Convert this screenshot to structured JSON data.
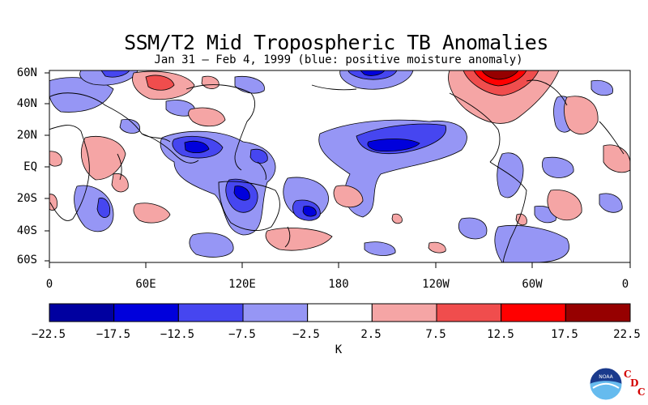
{
  "title": "SSM/T2 Mid Tropospheric TB Anomalies",
  "subtitle": "Jan 31 – Feb 4, 1999 (blue: positive moisture anomaly)",
  "map": {
    "lat_labels": [
      "60N",
      "40N",
      "20N",
      "EQ",
      "20S",
      "40S",
      "60S"
    ],
    "lon_labels": [
      "0",
      "60E",
      "120E",
      "180",
      "120W",
      "60W",
      "0"
    ]
  },
  "colorbar": {
    "levels": [
      "−22.5",
      "−17.5",
      "−12.5",
      "−7.5",
      "−2.5",
      "2.5",
      "7.5",
      "12.5",
      "17.5",
      "22.5"
    ],
    "colors": [
      "#0000a0",
      "#0000dc",
      "#4646f0",
      "#9696f5",
      "#ffffff",
      "#f5a5a5",
      "#f04d4d",
      "#ff0000",
      "#960000"
    ],
    "unit": "K"
  },
  "logo": {
    "name": "noaa-logo",
    "text": "NOAA",
    "cdc_letters": [
      "C",
      "D",
      "C"
    ]
  }
}
